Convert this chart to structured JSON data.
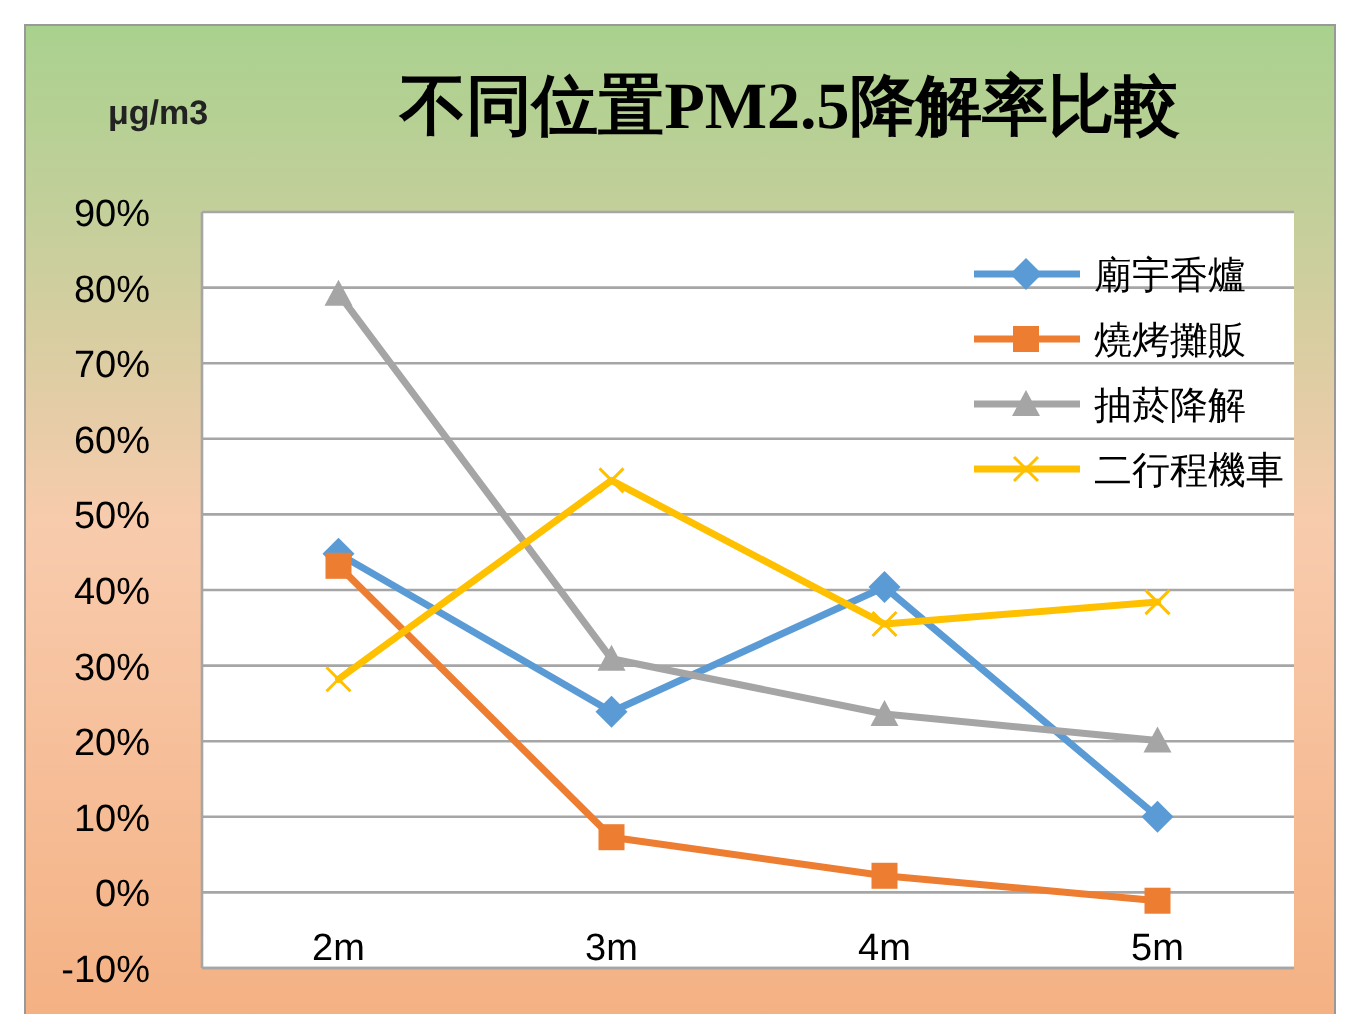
{
  "chart_data": {
    "type": "line",
    "title": "不同位置PM2.5降解率比較",
    "ylabel": "μg/m3",
    "categories": [
      "2m",
      "3m",
      "4m",
      "5m"
    ],
    "series": [
      {
        "name": "廟宇香爐",
        "color": "#5b9bd5",
        "marker": "diamond",
        "values": [
          44.8,
          23.9,
          40.4,
          10.0
        ]
      },
      {
        "name": "燒烤攤販",
        "color": "#ed7d31",
        "marker": "square",
        "values": [
          43.2,
          7.3,
          2.2,
          -1.1
        ]
      },
      {
        "name": "抽菸降解",
        "color": "#a5a5a5",
        "marker": "triangle",
        "values": [
          79.2,
          30.9,
          23.6,
          20.1
        ]
      },
      {
        "name": "二行程機車",
        "color": "#ffc000",
        "marker": "cross",
        "values": [
          28.2,
          54.5,
          35.5,
          38.4
        ]
      }
    ],
    "ylim": [
      -10,
      90
    ],
    "yticks": [
      {
        "value": -10,
        "label": "-10%"
      },
      {
        "value": 0,
        "label": "0%"
      },
      {
        "value": 10,
        "label": "10%"
      },
      {
        "value": 20,
        "label": "20%"
      },
      {
        "value": 30,
        "label": "30%"
      },
      {
        "value": 40,
        "label": "40%"
      },
      {
        "value": 50,
        "label": "50%"
      },
      {
        "value": 60,
        "label": "60%"
      },
      {
        "value": 70,
        "label": "70%"
      },
      {
        "value": 80,
        "label": "80%"
      },
      {
        "value": 90,
        "label": "90%"
      }
    ],
    "grid": "y",
    "legend": "top right"
  }
}
